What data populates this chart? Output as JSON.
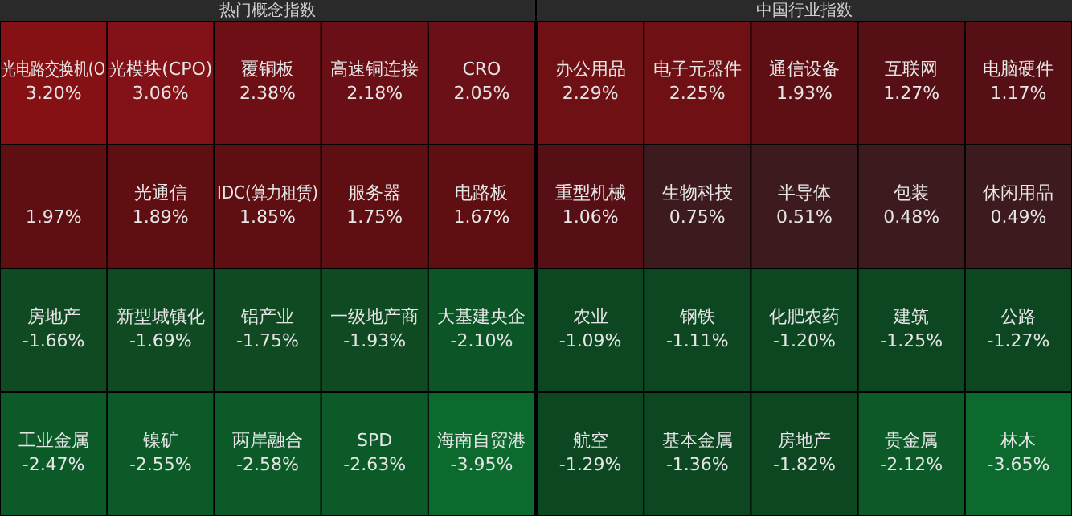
{
  "chart_data": [
    {
      "type": "other",
      "title": "热门概念指数",
      "categories": [
        "光电路交换机(O",
        "光模块(CPO)",
        "覆铜板",
        "高速铜连接",
        "CRO",
        null,
        "光通信",
        "IDC(算力租赁)",
        "服务器",
        "电路板",
        "房地产",
        "新型城镇化",
        "铝产业",
        "一级地产商",
        "大基建央企",
        "工业金属",
        "镍矿",
        "两岸融合",
        "SPD",
        "海南自贸港"
      ],
      "values": [
        3.2,
        3.06,
        2.38,
        2.18,
        2.05,
        1.97,
        1.89,
        1.85,
        1.75,
        1.67,
        -1.66,
        -1.69,
        -1.75,
        -1.93,
        -2.1,
        -2.47,
        -2.55,
        -2.58,
        -2.63,
        -3.95
      ],
      "value_labels": [
        "3.20%",
        "3.06%",
        "2.38%",
        "2.18%",
        "2.05%",
        "1.97%",
        "1.89%",
        "1.85%",
        "1.75%",
        "1.67%",
        "-1.66%",
        "-1.69%",
        "-1.75%",
        "-1.93%",
        "-2.10%",
        "-2.47%",
        "-2.55%",
        "-2.58%",
        "-2.63%",
        "-3.95%"
      ],
      "colors": [
        "#861114",
        "#821118",
        "#6e0f15",
        "#6a0f15",
        "#6a1016",
        "#5f0e12",
        "#5f0e12",
        "#5f0e12",
        "#5f0e12",
        "#5f0e12",
        "#0f4a23",
        "#0f4a23",
        "#0f4a23",
        "#0f4a23",
        "#0b5526",
        "#0b5a28",
        "#0b5a28",
        "#0b5a28",
        "#0b5a28",
        "#0c6a2e"
      ]
    },
    {
      "type": "other",
      "title": "中国行业指数",
      "categories": [
        "办公用品",
        "电子元器件",
        "通信设备",
        "互联网",
        "电脑硬件",
        "重型机械",
        "生物科技",
        "半导体",
        "包装",
        "休闲用品",
        "农业",
        "钢铁",
        "化肥农药",
        "建筑",
        "公路",
        "航空",
        "基本金属",
        "房地产",
        "贵金属",
        "林木"
      ],
      "values": [
        2.29,
        2.25,
        1.93,
        1.27,
        1.17,
        1.06,
        0.75,
        0.51,
        0.48,
        0.49,
        -1.09,
        -1.11,
        -1.2,
        -1.25,
        -1.27,
        -1.29,
        -1.36,
        -1.82,
        -2.12,
        -3.65
      ],
      "value_labels": [
        "2.29%",
        "2.25%",
        "1.93%",
        "1.27%",
        "1.17%",
        "1.06%",
        "0.75%",
        "0.51%",
        "0.48%",
        "0.49%",
        "-1.09%",
        "-1.11%",
        "-1.20%",
        "-1.25%",
        "-1.27%",
        "-1.29%",
        "-1.36%",
        "-1.82%",
        "-2.12%",
        "-3.65%"
      ],
      "colors": [
        "#6e1014",
        "#6e1014",
        "#5e0f14",
        "#560f14",
        "#560f14",
        "#560f14",
        "#3d1a1e",
        "#3d1a1e",
        "#3d1a1e",
        "#3d1a1e",
        "#0d4722",
        "#0d4722",
        "#0d4722",
        "#0d4722",
        "#0d4722",
        "#0d4722",
        "#0d4722",
        "#0d4722",
        "#0b5a28",
        "#0c6a2e"
      ]
    }
  ]
}
